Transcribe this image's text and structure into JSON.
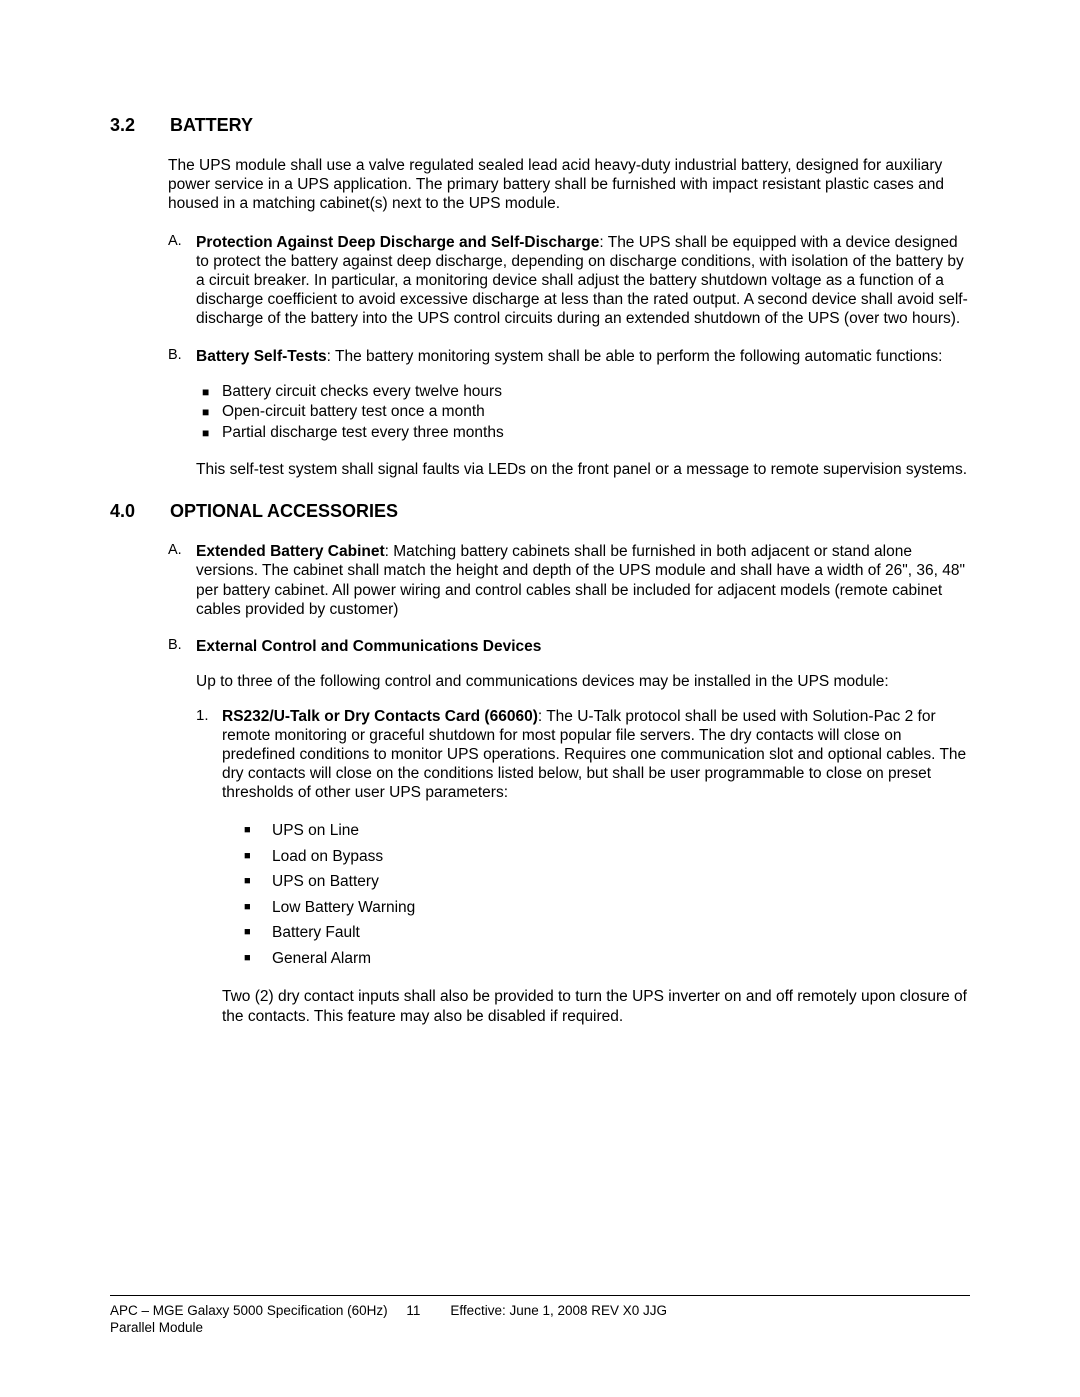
{
  "sections": {
    "s32": {
      "num": "3.2",
      "title": "BATTERY"
    },
    "s40": {
      "num": "4.0",
      "title": "OPTIONAL ACCESSORIES"
    }
  },
  "s32": {
    "intro": "The UPS module shall use a valve regulated sealed lead acid heavy-duty industrial battery, designed for auxiliary power service in a UPS application.  The primary battery shall be furnished with impact resistant plastic cases and housed in a matching cabinet(s) next to the UPS module.",
    "A": {
      "letter": "A.",
      "lead_bold": "Protection Against Deep Discharge and Self-Discharge",
      "lead_rest": ":  The UPS shall be equipped with a device designed to protect the battery against deep discharge, depending on discharge conditions, with isolation of the battery by a circuit breaker. In particular, a monitoring device shall adjust the battery shutdown voltage as a function of a discharge coefficient to avoid excessive discharge at less than the rated output. A second device shall avoid self-discharge of the battery into the UPS control circuits during an extended shutdown of the UPS (over two hours)."
    },
    "B": {
      "letter": "B.",
      "lead_bold": "Battery Self-Tests",
      "lead_rest": ":  The battery monitoring system shall be able to perform the following automatic functions:",
      "bullets": [
        "Battery circuit checks every twelve hours",
        "Open-circuit battery test once a month",
        "Partial discharge test every three months"
      ],
      "after": "This self-test system shall signal faults via LEDs on the front panel or a message to remote supervision systems."
    }
  },
  "s40": {
    "A": {
      "letter": "A.",
      "lead_bold": "Extended Battery Cabinet",
      "lead_rest": ":  Matching battery cabinets shall be furnished in both adjacent or stand alone versions.  The cabinet shall match the height and depth of the UPS module and shall have a width of 26\", 36, 48\" per battery cabinet. All power wiring and control cables shall be included for adjacent models (remote cabinet cables provided by customer)"
    },
    "B": {
      "letter": "B.",
      "lead_bold": "External Control and Communications Devices",
      "up_para": "Up to three of the following control and communications devices may be installed in the UPS module:",
      "item1": {
        "num": "1.",
        "lead_bold": "RS232/U-Talk or Dry Contacts Card (66060)",
        "lead_rest": ":  The U-Talk protocol shall be used with Solution-Pac 2 for remote monitoring or graceful shutdown for most popular file servers. The dry contacts will close on predefined conditions to monitor UPS operations. Requires one communication slot and optional cables.  The dry contacts will close on the conditions listed below, but shall be user programmable to close on preset thresholds of other user UPS parameters:",
        "bullets": [
          "UPS on Line",
          "Load on Bypass",
          "UPS on Battery",
          "Low Battery Warning",
          "Battery Fault",
          "General Alarm"
        ],
        "after": "Two (2) dry contact inputs shall also be provided to turn the UPS inverter on and off remotely upon closure of the contacts. This feature may also be disabled if required."
      }
    }
  },
  "footer": {
    "line1_left": "APC – MGE Galaxy 5000 Specification  (60Hz)",
    "page_num": "11",
    "line1_right": "Effective:  June 1, 2008 REV X0 JJG",
    "line2": "Parallel Module"
  }
}
